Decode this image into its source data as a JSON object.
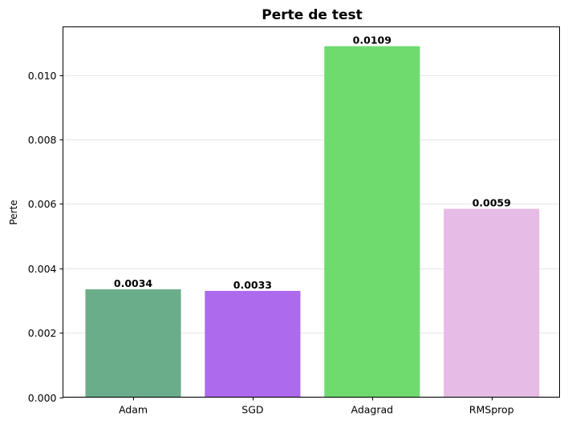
{
  "chart_data": {
    "type": "bar",
    "title": "Perte de test",
    "xlabel": "",
    "ylabel": "Perte",
    "categories": [
      "Adam",
      "SGD",
      "Adagrad",
      "RMSprop"
    ],
    "values": [
      0.00335,
      0.0033,
      0.0109,
      0.00585
    ],
    "value_labels": [
      "0.0034",
      "0.0033",
      "0.0109",
      "0.0059"
    ],
    "colors": [
      "#6aad8a",
      "#ad6aed",
      "#6fdb6f",
      "#e6bbe6"
    ],
    "ylim": [
      0,
      0.0115
    ],
    "yticks": [
      0,
      0.002,
      0.004,
      0.006,
      0.008,
      0.01
    ],
    "ytick_labels": [
      "0.000",
      "0.002",
      "0.004",
      "0.006",
      "0.008",
      "0.010"
    ],
    "grid": "y",
    "legend": "none"
  }
}
